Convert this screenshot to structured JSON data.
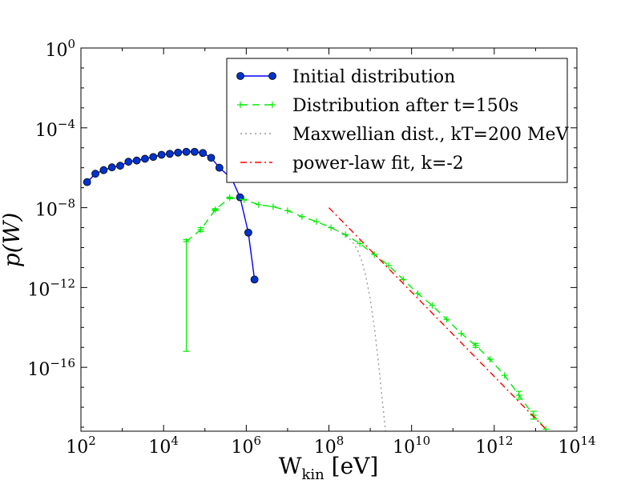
{
  "chart_data": {
    "type": "line",
    "xscale": "log",
    "yscale": "log",
    "xlim_exp": [
      2,
      14
    ],
    "ylim_exp": [
      -19.2,
      0
    ],
    "xlabel": "W",
    "xlabel_sub": "kin",
    "xlabel_unit": " [eV]",
    "ylabel": "p(W)",
    "x_tick_exps": [
      2,
      4,
      6,
      8,
      10,
      12,
      14
    ],
    "y_tick_exps": [
      0,
      -4,
      -8,
      -12,
      -16
    ],
    "x_tick_labels": [
      {
        "base": "10",
        "exp": "2"
      },
      {
        "base": "10",
        "exp": "4"
      },
      {
        "base": "10",
        "exp": "6"
      },
      {
        "base": "10",
        "exp": "8"
      },
      {
        "base": "10",
        "exp": "10"
      },
      {
        "base": "10",
        "exp": "12"
      },
      {
        "base": "10",
        "exp": "14"
      }
    ],
    "y_tick_labels": [
      {
        "base": "10",
        "exp": "0"
      },
      {
        "base": "10",
        "exp": "−4"
      },
      {
        "base": "10",
        "exp": "−8"
      },
      {
        "base": "10",
        "exp": "−12"
      },
      {
        "base": "10",
        "exp": "−16"
      }
    ],
    "legend_position": "top-right",
    "series": [
      {
        "name": "Initial distribution",
        "color": "#0000ff",
        "face": "#0033cc",
        "style": "solid-circles",
        "points_exp": [
          [
            2.15,
            -6.72
          ],
          [
            2.35,
            -6.3
          ],
          [
            2.55,
            -6.12
          ],
          [
            2.75,
            -5.98
          ],
          [
            2.95,
            -5.9
          ],
          [
            3.15,
            -5.7
          ],
          [
            3.35,
            -5.64
          ],
          [
            3.55,
            -5.55
          ],
          [
            3.75,
            -5.46
          ],
          [
            3.95,
            -5.35
          ],
          [
            4.15,
            -5.3
          ],
          [
            4.35,
            -5.24
          ],
          [
            4.55,
            -5.2
          ],
          [
            4.75,
            -5.2
          ],
          [
            4.95,
            -5.26
          ],
          [
            5.15,
            -5.5
          ],
          [
            5.35,
            -6.0
          ],
          [
            5.65,
            -6.55
          ],
          [
            5.85,
            -7.48
          ],
          [
            6.05,
            -9.25
          ],
          [
            6.2,
            -11.6
          ]
        ]
      },
      {
        "name": "Distribution after t=150s",
        "color": "#00ee00",
        "style": "dashed-plus",
        "points_exp": [
          [
            4.55,
            -9.7
          ],
          [
            4.9,
            -9.1
          ],
          [
            5.25,
            -8.1
          ],
          [
            5.6,
            -7.5
          ],
          [
            5.95,
            -7.6
          ],
          [
            6.3,
            -7.85
          ],
          [
            6.65,
            -7.95
          ],
          [
            7.0,
            -8.15
          ],
          [
            7.35,
            -8.45
          ],
          [
            7.7,
            -8.7
          ],
          [
            8.05,
            -9.0
          ],
          [
            8.4,
            -9.35
          ],
          [
            8.75,
            -9.8
          ],
          [
            9.1,
            -10.35
          ],
          [
            9.45,
            -10.9
          ],
          [
            9.8,
            -11.6
          ],
          [
            10.15,
            -12.3
          ],
          [
            10.5,
            -12.9
          ],
          [
            10.85,
            -13.6
          ],
          [
            11.2,
            -14.3
          ],
          [
            11.55,
            -14.9
          ],
          [
            11.9,
            -15.6
          ],
          [
            12.25,
            -16.4
          ],
          [
            12.6,
            -17.4
          ],
          [
            12.95,
            -18.4
          ],
          [
            13.25,
            -19.1
          ]
        ],
        "errorbars_exp": [
          [
            4.55,
            -9.6,
            -15.2
          ],
          [
            4.9,
            -9.0,
            -9.2
          ],
          [
            5.25,
            -8.05,
            -8.15
          ],
          [
            5.6,
            -7.47,
            -7.55
          ],
          [
            11.55,
            -14.8,
            -15.0
          ],
          [
            12.6,
            -17.2,
            -17.6
          ],
          [
            12.95,
            -18.2,
            -18.6
          ]
        ]
      },
      {
        "name": "Maxwellian dist., kT=200 MeV",
        "color": "#999999",
        "style": "dotted",
        "points_exp": [
          [
            8.0,
            -8.95
          ],
          [
            8.2,
            -9.15
          ],
          [
            8.4,
            -9.4
          ],
          [
            8.5,
            -9.55
          ],
          [
            8.6,
            -9.8
          ],
          [
            8.7,
            -10.15
          ],
          [
            8.8,
            -10.7
          ],
          [
            8.9,
            -11.5
          ],
          [
            9.0,
            -12.6
          ],
          [
            9.1,
            -14.0
          ],
          [
            9.2,
            -15.8
          ],
          [
            9.3,
            -17.8
          ],
          [
            9.37,
            -19.2
          ]
        ]
      },
      {
        "name": "power-law fit, k=-2",
        "color": "#ff0000",
        "style": "dashdot",
        "points_exp": [
          [
            8.0,
            -8.0
          ],
          [
            13.25,
            -19.1
          ]
        ]
      }
    ]
  }
}
